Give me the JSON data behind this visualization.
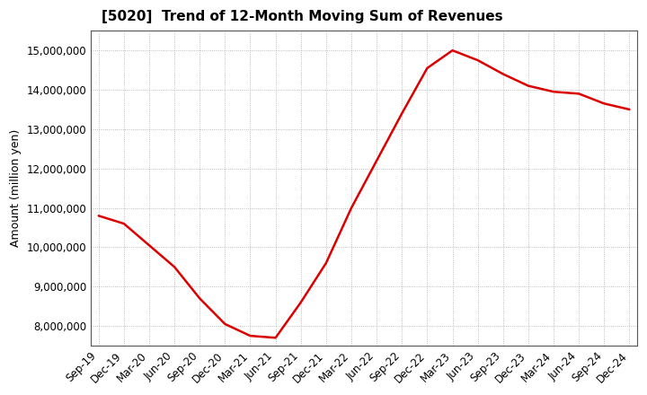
{
  "title": "[5020]  Trend of 12-Month Moving Sum of Revenues",
  "ylabel": "Amount (million yen)",
  "line_color": "#dd0000",
  "background_color": "#ffffff",
  "plot_bg_color": "#ffffff",
  "grid_color": "#aaaaaa",
  "x_labels": [
    "Sep-19",
    "Dec-19",
    "Mar-20",
    "Jun-20",
    "Sep-20",
    "Dec-20",
    "Mar-21",
    "Jun-21",
    "Sep-21",
    "Dec-21",
    "Mar-22",
    "Jun-22",
    "Sep-22",
    "Dec-22",
    "Mar-23",
    "Jun-23",
    "Sep-23",
    "Dec-23",
    "Mar-24",
    "Jun-24",
    "Sep-24",
    "Dec-24"
  ],
  "values": [
    10800000,
    10600000,
    10050000,
    9500000,
    8700000,
    8050000,
    7750000,
    7700000,
    8600000,
    9600000,
    11000000,
    12200000,
    13400000,
    14550000,
    15000000,
    14750000,
    14400000,
    14100000,
    13950000,
    13900000,
    13650000,
    13500000
  ],
  "ylim": [
    7500000,
    15500000
  ],
  "yticks": [
    8000000,
    9000000,
    10000000,
    11000000,
    12000000,
    13000000,
    14000000,
    15000000
  ],
  "title_fontsize": 11,
  "ylabel_fontsize": 9,
  "tick_fontsize": 8.5
}
